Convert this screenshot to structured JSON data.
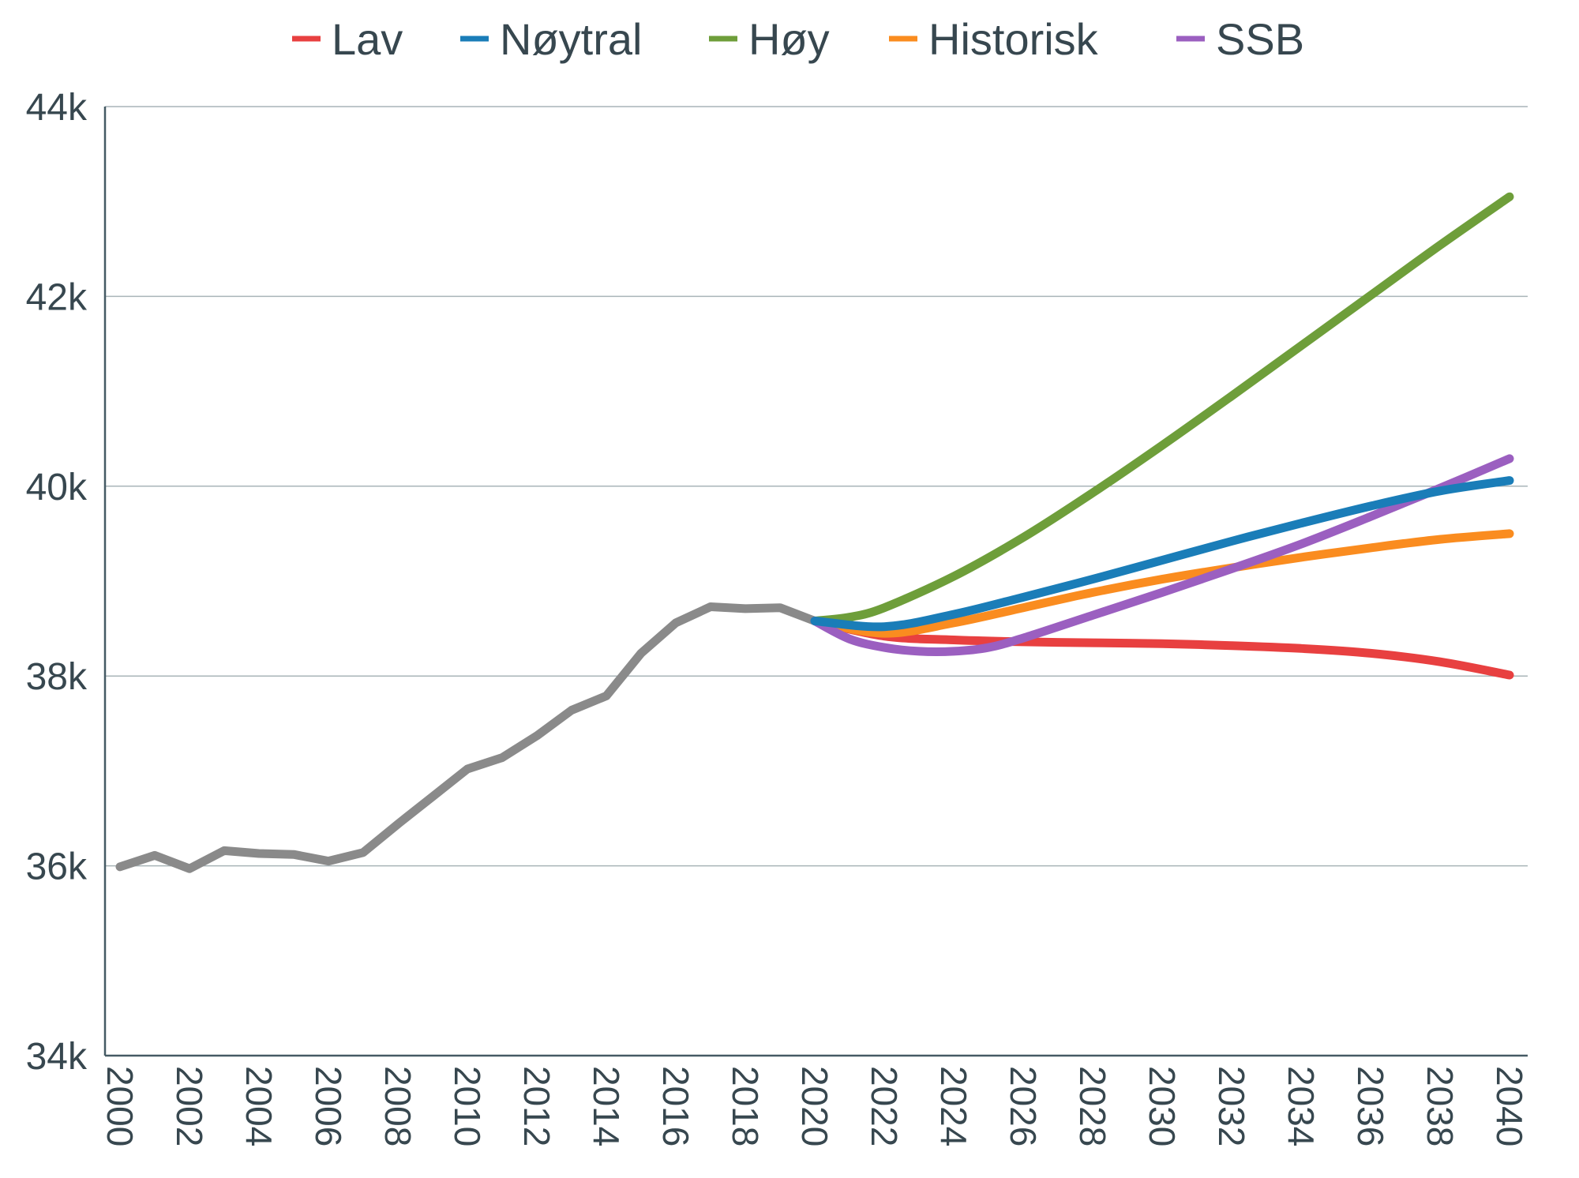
{
  "chart_data": {
    "type": "line",
    "title": "",
    "xlabel": "",
    "ylabel": "",
    "xlim": [
      2000,
      2040
    ],
    "ylim": [
      34000,
      44000
    ],
    "y_ticks": [
      {
        "value": 34000,
        "label": "34k"
      },
      {
        "value": 36000,
        "label": "36k"
      },
      {
        "value": 38000,
        "label": "38k"
      },
      {
        "value": 40000,
        "label": "40k"
      },
      {
        "value": 42000,
        "label": "42k"
      },
      {
        "value": 44000,
        "label": "44k"
      }
    ],
    "x_ticks": [
      {
        "value": 2000,
        "label": "2000"
      },
      {
        "value": 2002,
        "label": "2002"
      },
      {
        "value": 2004,
        "label": "2004"
      },
      {
        "value": 2006,
        "label": "2006"
      },
      {
        "value": 2008,
        "label": "2008"
      },
      {
        "value": 2010,
        "label": "2010"
      },
      {
        "value": 2012,
        "label": "2012"
      },
      {
        "value": 2014,
        "label": "2014"
      },
      {
        "value": 2016,
        "label": "2016"
      },
      {
        "value": 2018,
        "label": "2018"
      },
      {
        "value": 2020,
        "label": "2020"
      },
      {
        "value": 2022,
        "label": "2022"
      },
      {
        "value": 2024,
        "label": "2024"
      },
      {
        "value": 2026,
        "label": "2026"
      },
      {
        "value": 2028,
        "label": "2028"
      },
      {
        "value": 2030,
        "label": "2030"
      },
      {
        "value": 2032,
        "label": "2032"
      },
      {
        "value": 2034,
        "label": "2034"
      },
      {
        "value": 2036,
        "label": "2036"
      },
      {
        "value": 2038,
        "label": "2038"
      },
      {
        "value": 2040,
        "label": "2040"
      }
    ],
    "legend_position": "top",
    "grid": true,
    "series": [
      {
        "name": "Historisk data",
        "in_legend": false,
        "color": "#8a8a8a",
        "x": [
          2000,
          2001,
          2002,
          2003,
          2004,
          2005,
          2006,
          2007,
          2008,
          2009,
          2010,
          2011,
          2012,
          2013,
          2014,
          2015,
          2016,
          2017,
          2018,
          2019,
          2020
        ],
        "values": [
          35990,
          36110,
          35970,
          36160,
          36130,
          36120,
          36050,
          36140,
          36440,
          36730,
          37020,
          37140,
          37370,
          37640,
          37790,
          38240,
          38560,
          38730,
          38710,
          38720,
          38580
        ]
      },
      {
        "name": "Lav",
        "in_legend": true,
        "color": "#e84040",
        "x": [
          2020,
          2022,
          2024,
          2026,
          2028,
          2030,
          2032,
          2034,
          2036,
          2038,
          2040
        ],
        "values": [
          38580,
          38420,
          38380,
          38360,
          38350,
          38340,
          38320,
          38290,
          38240,
          38150,
          38010
        ]
      },
      {
        "name": "Nøytral",
        "in_legend": true,
        "color": "#1a7db8",
        "x": [
          2020,
          2022,
          2024,
          2026,
          2028,
          2030,
          2032,
          2034,
          2036,
          2038,
          2040
        ],
        "values": [
          38580,
          38520,
          38650,
          38830,
          39020,
          39220,
          39420,
          39610,
          39790,
          39950,
          40060
        ]
      },
      {
        "name": "Høy",
        "in_legend": true,
        "color": "#6e9e3a",
        "x": [
          2020,
          2021,
          2022,
          2024,
          2026,
          2028,
          2030,
          2032,
          2034,
          2036,
          2038,
          2040
        ],
        "values": [
          38580,
          38620,
          38720,
          39050,
          39460,
          39930,
          40430,
          40950,
          41480,
          42010,
          42540,
          43050
        ]
      },
      {
        "name": "Historisk",
        "in_legend": true,
        "color": "#fa8c1f",
        "x": [
          2020,
          2022,
          2024,
          2026,
          2028,
          2030,
          2032,
          2034,
          2036,
          2038,
          2040
        ],
        "values": [
          38580,
          38450,
          38560,
          38720,
          38880,
          39020,
          39140,
          39250,
          39350,
          39440,
          39500
        ]
      },
      {
        "name": "SSB",
        "in_legend": true,
        "color": "#9b5fc0",
        "x": [
          2020,
          2021,
          2022,
          2023,
          2024,
          2025,
          2026,
          2028,
          2030,
          2032,
          2034,
          2036,
          2038,
          2040
        ],
        "values": [
          38580,
          38390,
          38300,
          38260,
          38260,
          38300,
          38400,
          38640,
          38880,
          39130,
          39390,
          39680,
          39980,
          40290
        ]
      }
    ]
  }
}
